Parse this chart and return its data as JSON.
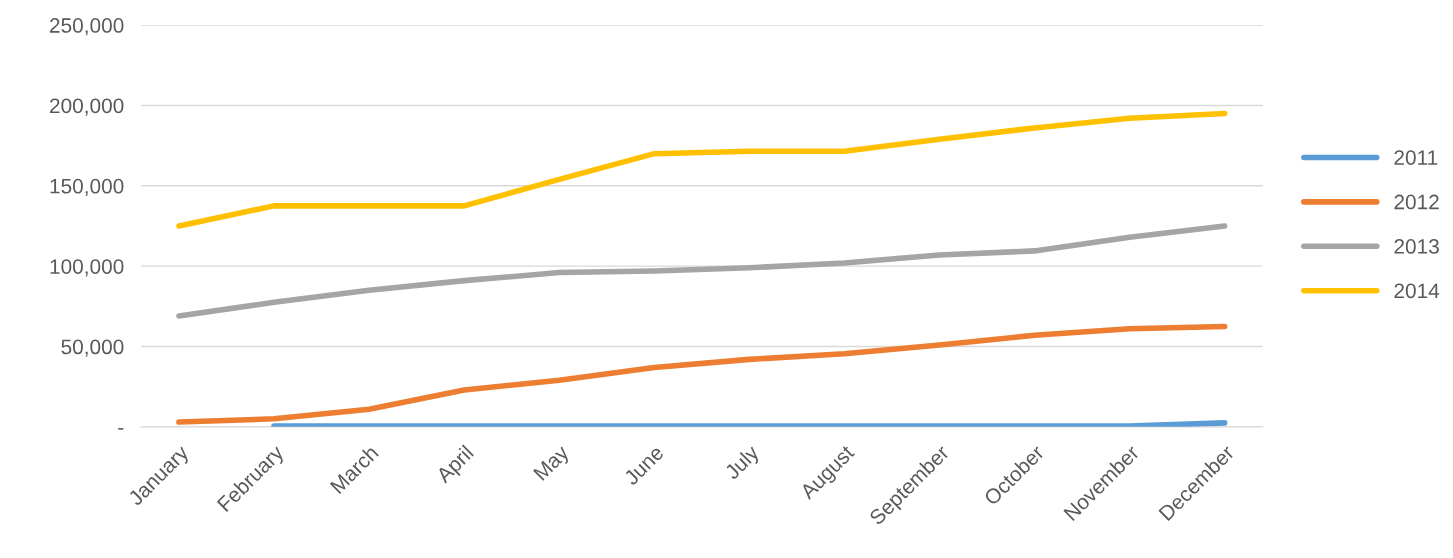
{
  "chart_data": {
    "type": "line",
    "categories": [
      "January",
      "February",
      "March",
      "April",
      "May",
      "June",
      "July",
      "August",
      "September",
      "October",
      "November",
      "December"
    ],
    "series": [
      {
        "name": "2011",
        "color": "#5b9bd5",
        "values": [
          null,
          500,
          500,
          500,
          500,
          500,
          500,
          500,
          500,
          500,
          500,
          2500
        ]
      },
      {
        "name": "2012",
        "color": "#ed7d31",
        "values": [
          3000,
          5000,
          11000,
          23000,
          29000,
          37000,
          42000,
          45500,
          51000,
          57000,
          61000,
          62500
        ]
      },
      {
        "name": "2013",
        "color": "#a5a5a5",
        "values": [
          69000,
          77500,
          85000,
          91000,
          96000,
          97000,
          99000,
          102000,
          107000,
          109500,
          118000,
          125000
        ]
      },
      {
        "name": "2014",
        "color": "#ffc000",
        "values": [
          125000,
          137500,
          137500,
          137500,
          154000,
          170000,
          171500,
          171500,
          179000,
          186000,
          192000,
          195000
        ]
      }
    ],
    "ylim": [
      0,
      250000
    ],
    "yticks": [
      {
        "value": 0,
        "label": "-"
      },
      {
        "value": 50000,
        "label": "50,000"
      },
      {
        "value": 100000,
        "label": "100,000"
      },
      {
        "value": 150000,
        "label": "150,000"
      },
      {
        "value": 200000,
        "label": "200,000"
      },
      {
        "value": 250000,
        "label": "250,000"
      }
    ],
    "grid": "y",
    "legend": "right",
    "marker": "none",
    "line_style": "solid"
  }
}
